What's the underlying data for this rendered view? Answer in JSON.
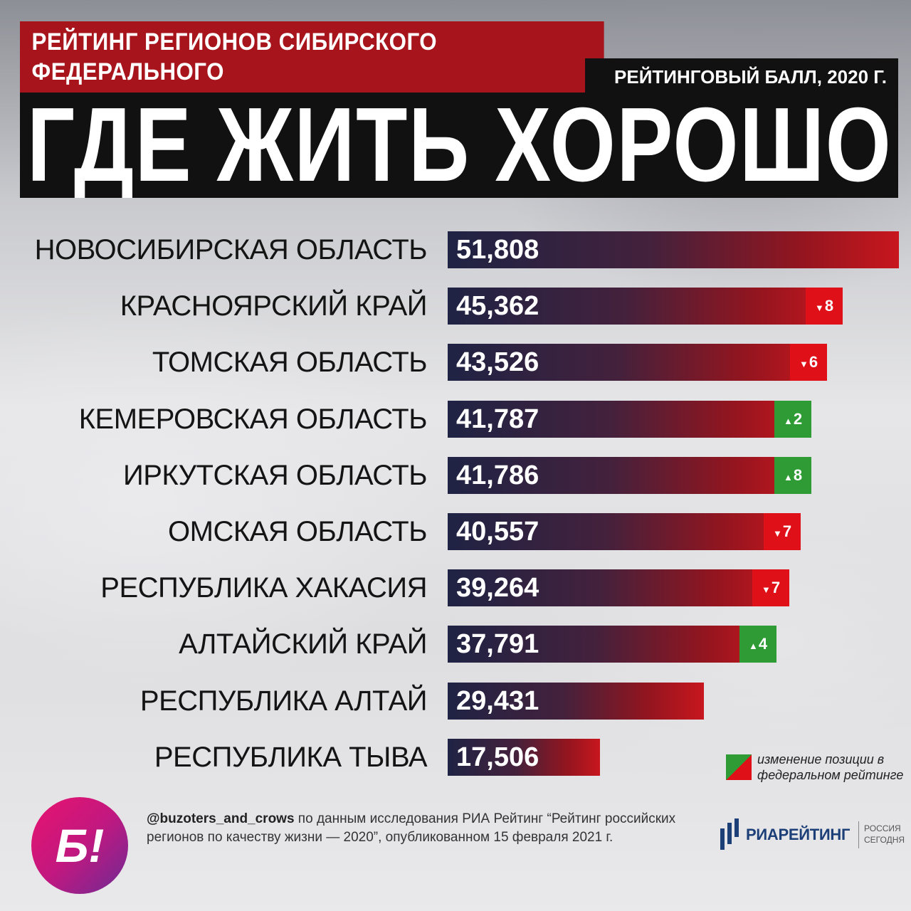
{
  "header": {
    "subtitle": "РЕЙТИНГ РЕГИОНОВ СИБИРСКОГО ФЕДЕРАЛЬНОГО\nОКРУГА  ПО КАЧЕСТВУ ЖИЗНИ",
    "title": "ГДЕ ЖИТЬ ХОРОШО",
    "score_header": "РЕЙТИНГОВЫЙ БАЛЛ, 2020 Г."
  },
  "chart_data": {
    "type": "bar",
    "orientation": "horizontal",
    "categories": [
      "НОВОСИБИРСКАЯ ОБЛАСТЬ",
      "КРАСНОЯРСКИЙ КРАЙ",
      "ТОМСКАЯ ОБЛАСТЬ",
      "КЕМЕРОВСКАЯ ОБЛАСТЬ",
      "ИРКУТСКАЯ ОБЛАСТЬ",
      "ОМСКАЯ ОБЛАСТЬ",
      "РЕСПУБЛИКА ХАКАСИЯ",
      "АЛТАЙСКИЙ КРАЙ",
      "РЕСПУБЛИКА АЛТАЙ",
      "РЕСПУБЛИКА ТЫВА"
    ],
    "values": [
      51.808,
      45.362,
      43.526,
      41.787,
      41.786,
      40.557,
      39.264,
      37.791,
      29.431,
      17.506
    ],
    "value_labels": [
      "51,808",
      "45,362",
      "43,526",
      "41,787",
      "41,786",
      "40,557",
      "39,264",
      "37,791",
      "29,431",
      "17,506"
    ],
    "position_change": [
      null,
      {
        "direction": "down",
        "value": "8"
      },
      {
        "direction": "down",
        "value": "6"
      },
      {
        "direction": "up",
        "value": "2"
      },
      {
        "direction": "up",
        "value": "8"
      },
      {
        "direction": "down",
        "value": "7"
      },
      {
        "direction": "down",
        "value": "7"
      },
      {
        "direction": "up",
        "value": "4"
      },
      null,
      null
    ],
    "xlim": [
      0,
      51.808
    ],
    "grid": false,
    "legend": {
      "text": "изменение позиции в федеральном рейтинге",
      "position": "bottom-right"
    },
    "colors": {
      "bar_start": "#1f2344",
      "bar_end": "#c8161e",
      "down": "#e01018",
      "up": "#2f9b34"
    }
  },
  "footer": {
    "logo": "Б!",
    "handle": "@buzoters_and_crows",
    "source": " по данным исследования РИА Рейтинг “Рейтинг российских регионов по качеству жизни — 2020”, опубликованном 15 февраля 2021 г.",
    "ria_brand": "РИАРЕЙТИНГ",
    "ria_sub": "РОССИЯ СЕГОДНЯ"
  }
}
